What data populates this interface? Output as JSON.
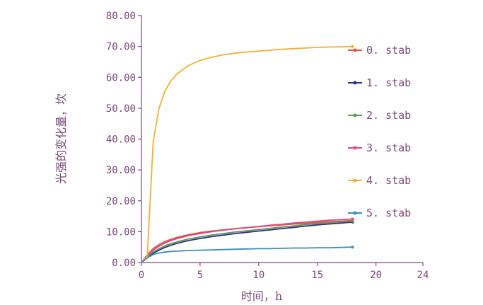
{
  "chart_data": {
    "type": "line",
    "xlabel": "时间，h",
    "ylabel": "光强的变化量，坎",
    "xlim": [
      0,
      24
    ],
    "ylim": [
      0,
      80
    ],
    "x_ticks": [
      "0",
      "5",
      "10",
      "15",
      "20",
      "24"
    ],
    "y_ticks": [
      "0.00",
      "10.00",
      "20.00",
      "30.00",
      "40.00",
      "50.00",
      "60.00",
      "70.00",
      "80.00"
    ],
    "legend_position": "right",
    "x": [
      0,
      0.5,
      1,
      1.5,
      2,
      2.5,
      3,
      4,
      5,
      6,
      7,
      8,
      9,
      10,
      11,
      12,
      13,
      14,
      15,
      16,
      17,
      18
    ],
    "series": [
      {
        "name": "0. stab",
        "color": "#e8503a",
        "values": [
          0,
          2.5,
          4.5,
          5.8,
          6.8,
          7.5,
          8.1,
          9.0,
          9.7,
          10.2,
          10.6,
          11.0,
          11.3,
          11.6,
          11.9,
          12.2,
          12.5,
          12.7,
          13.0,
          13.2,
          13.4,
          13.6
        ]
      },
      {
        "name": "1. stab",
        "color": "#2e2f86",
        "values": [
          0,
          1.8,
          3.0,
          4.0,
          4.9,
          5.6,
          6.2,
          7.1,
          7.8,
          8.4,
          8.9,
          9.4,
          9.8,
          10.2,
          10.6,
          11.0,
          11.4,
          11.8,
          12.2,
          12.5,
          12.8,
          13.1
        ]
      },
      {
        "name": "2. stab",
        "color": "#5e9a58",
        "values": [
          0,
          2.0,
          3.4,
          4.5,
          5.4,
          6.1,
          6.7,
          7.6,
          8.3,
          8.9,
          9.4,
          9.9,
          10.3,
          10.7,
          11.1,
          11.5,
          11.9,
          12.3,
          12.6,
          12.9,
          13.2,
          13.4
        ]
      },
      {
        "name": "3. stab",
        "color": "#d94a88",
        "values": [
          0,
          2.3,
          4.0,
          5.3,
          6.3,
          7.1,
          7.7,
          8.7,
          9.4,
          10.0,
          10.5,
          10.9,
          11.3,
          11.7,
          12.1,
          12.4,
          12.8,
          13.1,
          13.4,
          13.7,
          13.9,
          14.1
        ]
      },
      {
        "name": "4. stab",
        "color": "#f2b132",
        "values": [
          0,
          2.0,
          39.0,
          50.0,
          55.5,
          58.8,
          61.0,
          63.8,
          65.5,
          66.5,
          67.3,
          67.8,
          68.2,
          68.5,
          68.8,
          69.1,
          69.3,
          69.5,
          69.7,
          69.8,
          69.9,
          70.0
        ]
      },
      {
        "name": "5. stab",
        "color": "#3b8fb5",
        "values": [
          0,
          1.5,
          2.6,
          3.1,
          3.4,
          3.6,
          3.7,
          3.9,
          4.0,
          4.1,
          4.2,
          4.3,
          4.4,
          4.5,
          4.5,
          4.6,
          4.7,
          4.7,
          4.8,
          4.8,
          4.9,
          5.0
        ]
      }
    ]
  }
}
